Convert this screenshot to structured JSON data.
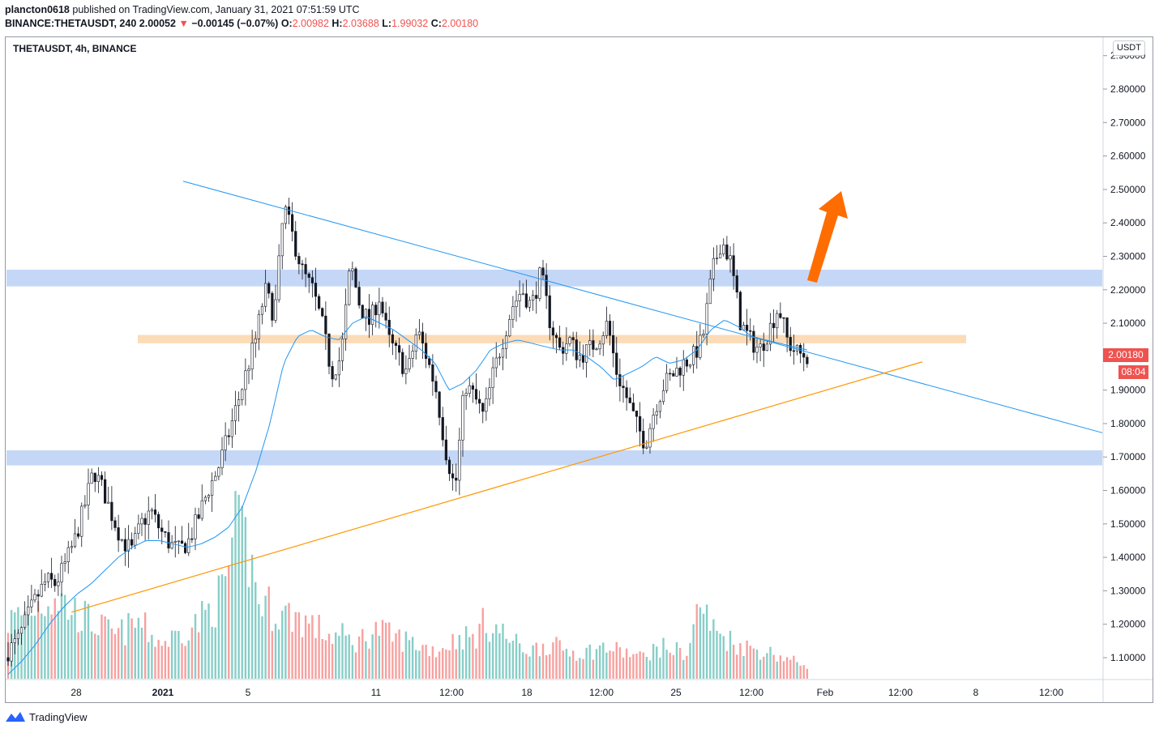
{
  "header": {
    "publisher": "plancton0618",
    "published_text": "published on TradingView.com, January 31, 2021 07:51:59 UTC",
    "symbol_line": "BINANCE:THETAUSDT, 240",
    "last": "2.00052",
    "change": "−0.00145 (−0.07%)",
    "open_label": "O:",
    "open": "2.00982",
    "high_label": "H:",
    "high": "2.03688",
    "low_label": "L:",
    "low": "1.99032",
    "close_label": "C:",
    "close": "2.00180"
  },
  "symbol_title": "THETAUSDT, 4h, BINANCE",
  "currency_badge": "USDT",
  "price_label": "2.00180",
  "countdown_label": "08:04",
  "footer": {
    "brand": "TradingView"
  },
  "colors": {
    "up": "#26a69a",
    "down": "#ef5350",
    "ma": "#2196f3",
    "zone_blue": "#b7cdf5",
    "zone_orange": "#fbd5aa",
    "arrow": "#ff6d00",
    "trend_orange": "#ff9800"
  },
  "chart_data": {
    "type": "candlestick",
    "symbol": "THETAUSDT",
    "timeframe": "4h",
    "exchange": "BINANCE",
    "y_ticks": [
      "1.10000",
      "1.20000",
      "1.30000",
      "1.40000",
      "1.50000",
      "1.60000",
      "1.70000",
      "1.80000",
      "1.90000",
      "2.00000",
      "2.10000",
      "2.20000",
      "2.30000",
      "2.40000",
      "2.50000",
      "2.60000",
      "2.70000",
      "2.80000",
      "2.90000"
    ],
    "x_ticks": [
      "28",
      "2021",
      "5",
      "11",
      "12:00",
      "18",
      "12:00",
      "25",
      "12:00",
      "Feb",
      "12:00",
      "8",
      "12:00"
    ],
    "ylim": [
      1.04,
      2.93
    ],
    "last_price": 2.0018,
    "closes_approx": [
      1.12,
      1.15,
      1.22,
      1.28,
      1.33,
      1.32,
      1.38,
      1.45,
      1.55,
      1.66,
      1.6,
      1.52,
      1.45,
      1.42,
      1.5,
      1.54,
      1.48,
      1.44,
      1.42,
      1.45,
      1.52,
      1.6,
      1.66,
      1.75,
      1.85,
      1.95,
      2.05,
      2.2,
      2.12,
      2.45,
      2.35,
      2.25,
      2.2,
      2.1,
      1.95,
      2.0,
      2.28,
      2.15,
      2.1,
      2.18,
      2.05,
      2.0,
      1.95,
      2.08,
      2.0,
      1.9,
      1.72,
      1.6,
      1.92,
      1.88,
      1.82,
      1.95,
      2.05,
      2.15,
      2.2,
      2.15,
      2.25,
      2.1,
      2.02,
      2.05,
      2.0,
      2.02,
      2.05,
      2.1,
      1.95,
      1.88,
      1.8,
      1.74,
      1.85,
      1.92,
      1.95,
      1.98,
      2.0,
      2.05,
      2.25,
      2.35,
      2.28,
      2.1,
      2.05,
      2.02,
      2.08,
      2.15,
      2.04,
      2.01,
      2.0018
    ],
    "moving_average_approx": [
      1.05,
      1.09,
      1.14,
      1.2,
      1.25,
      1.29,
      1.32,
      1.36,
      1.4,
      1.43,
      1.45,
      1.45,
      1.44,
      1.43,
      1.44,
      1.46,
      1.49,
      1.55,
      1.66,
      1.8,
      1.98,
      2.06,
      2.08,
      2.06,
      2.05,
      2.1,
      2.12,
      2.1,
      2.08,
      2.05,
      2.02,
      1.98,
      1.9,
      1.92,
      1.96,
      2.02,
      2.04,
      2.05,
      2.04,
      2.03,
      2.02,
      2.02,
      2.0,
      1.97,
      1.93,
      1.95,
      1.97,
      2.0,
      1.98,
      1.99,
      2.02,
      2.08,
      2.11,
      2.09,
      2.06,
      2.05,
      2.04,
      2.03,
      2.02
    ],
    "volume_relative_approx": [
      0.4,
      0.45,
      0.5,
      0.55,
      0.6,
      0.5,
      0.45,
      0.4,
      0.35,
      0.3,
      0.35,
      0.4,
      0.3,
      0.25,
      0.3,
      0.35,
      0.4,
      0.5,
      0.6,
      1.0,
      0.95,
      0.55,
      0.5,
      0.45,
      0.45,
      0.4,
      0.35,
      0.3,
      0.3,
      0.25,
      0.3,
      0.35,
      0.3,
      0.28,
      0.25,
      0.22,
      0.2,
      0.25,
      0.3,
      0.28,
      0.4,
      0.35,
      0.28,
      0.22,
      0.2,
      0.25,
      0.22,
      0.2,
      0.18,
      0.2,
      0.22,
      0.2,
      0.18,
      0.15,
      0.2,
      0.22,
      0.2,
      0.18,
      0.55,
      0.35,
      0.3,
      0.25,
      0.22,
      0.2,
      0.18,
      0.15,
      0.12,
      0.1
    ],
    "overlays": {
      "resistance_zone": [
        2.21,
        2.26
      ],
      "support_zone": [
        1.675,
        1.72
      ],
      "pivot_zone": [
        2.04,
        2.065
      ],
      "descending_trendline": {
        "from": 2.51,
        "to": 1.77
      },
      "ascending_trendline": {
        "from": 1.26,
        "to": 1.97
      },
      "arrow": "up"
    }
  }
}
